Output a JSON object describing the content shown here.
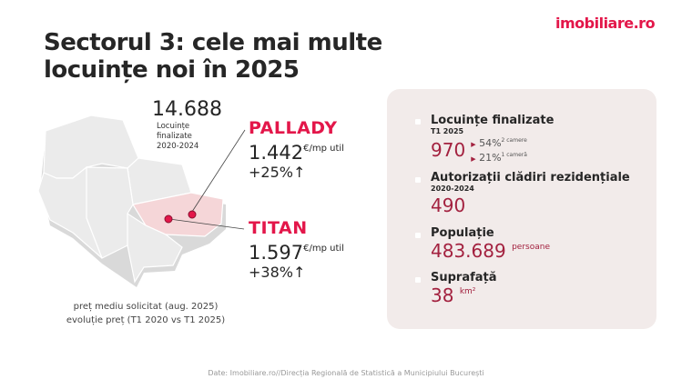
{
  "logo": "imobiliare.ro",
  "title": [
    "Sectorul 3: cele mai multe",
    "locuințe noi în 2025"
  ],
  "total": {
    "value": "14.688",
    "label": [
      "Locuințe",
      "finalizate",
      "2020-2024"
    ]
  },
  "districts": [
    {
      "name": "PALLADY",
      "price": "1.442",
      "unit": "€/mp util",
      "change": "+25%↑"
    },
    {
      "name": "TITAN",
      "price": "1.597",
      "unit": "€/mp util",
      "change": "+38%↑"
    }
  ],
  "legend": [
    "preț mediu solicitat (aug. 2025)",
    "evoluție preț (T1 2020 vs T1 2025)"
  ],
  "stats": {
    "finalized": {
      "title": "Locuințe finalizate",
      "period": "T1 2025",
      "value": "970",
      "breakdown": [
        {
          "pct": "54%",
          "label": "2 camere"
        },
        {
          "pct": "21%",
          "label": "1 cameră"
        }
      ]
    },
    "permits": {
      "title": "Autorizații clădiri rezidențiale",
      "period": "2020-2024",
      "value": "490"
    },
    "population": {
      "title": "Populație",
      "value": "483.689",
      "unit": "persoane"
    },
    "area": {
      "title": "Suprafață",
      "value": "38",
      "unit": "km²"
    }
  },
  "source": "Date: Imobiliare.ro//Direcția Regională de Statistică a Municipiului București",
  "colors": {
    "brand": "#e3174a",
    "accent": "#a3213f",
    "card": "#f2ebea",
    "highlight": "#f5d6d8"
  }
}
